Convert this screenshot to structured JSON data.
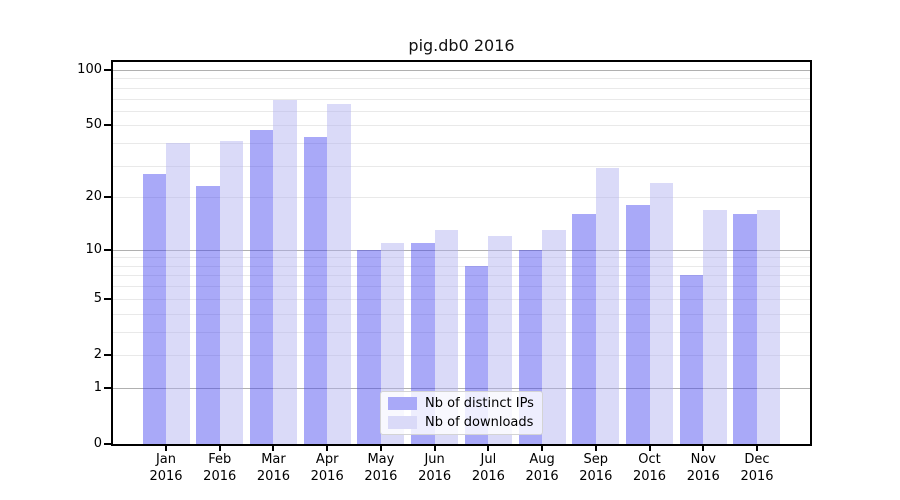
{
  "chart_data": {
    "type": "bar",
    "title": "pig.db0 2016",
    "categories": [
      "Jan",
      "Feb",
      "Mar",
      "Apr",
      "May",
      "Jun",
      "Jul",
      "Aug",
      "Sep",
      "Oct",
      "Nov",
      "Dec"
    ],
    "category_year": "2016",
    "series": [
      {
        "name": "Nb of distinct IPs",
        "swatch_color": "#a9a9f8",
        "bar_color": "rgba(68,68,240,0.46)",
        "values": [
          27,
          23,
          47,
          43,
          10,
          11,
          8,
          10,
          16,
          18,
          7,
          16
        ]
      },
      {
        "name": "Nb of downloads",
        "swatch_color": "#dadaf8",
        "bar_color": "rgba(175,175,240,0.46)",
        "values": [
          40,
          41,
          69,
          65,
          11,
          13,
          12,
          13,
          29,
          24,
          17,
          17
        ]
      }
    ],
    "yscale": "log1p",
    "ylim": [
      0,
      113
    ],
    "yticks": [
      100,
      50,
      20,
      10,
      5,
      2,
      1,
      0
    ],
    "major_gridlines": [
      1,
      10,
      100
    ],
    "minor_gridlines": [
      2,
      3,
      4,
      5,
      6,
      7,
      8,
      9,
      20,
      30,
      40,
      50,
      60,
      70,
      80,
      90
    ],
    "grid_color_major": "#b0b0b0",
    "grid_color_minor": "#e9e9e9",
    "legend_position": "lower center",
    "legend_entries": [
      "Nb of distinct IPs",
      "Nb of downloads"
    ]
  }
}
